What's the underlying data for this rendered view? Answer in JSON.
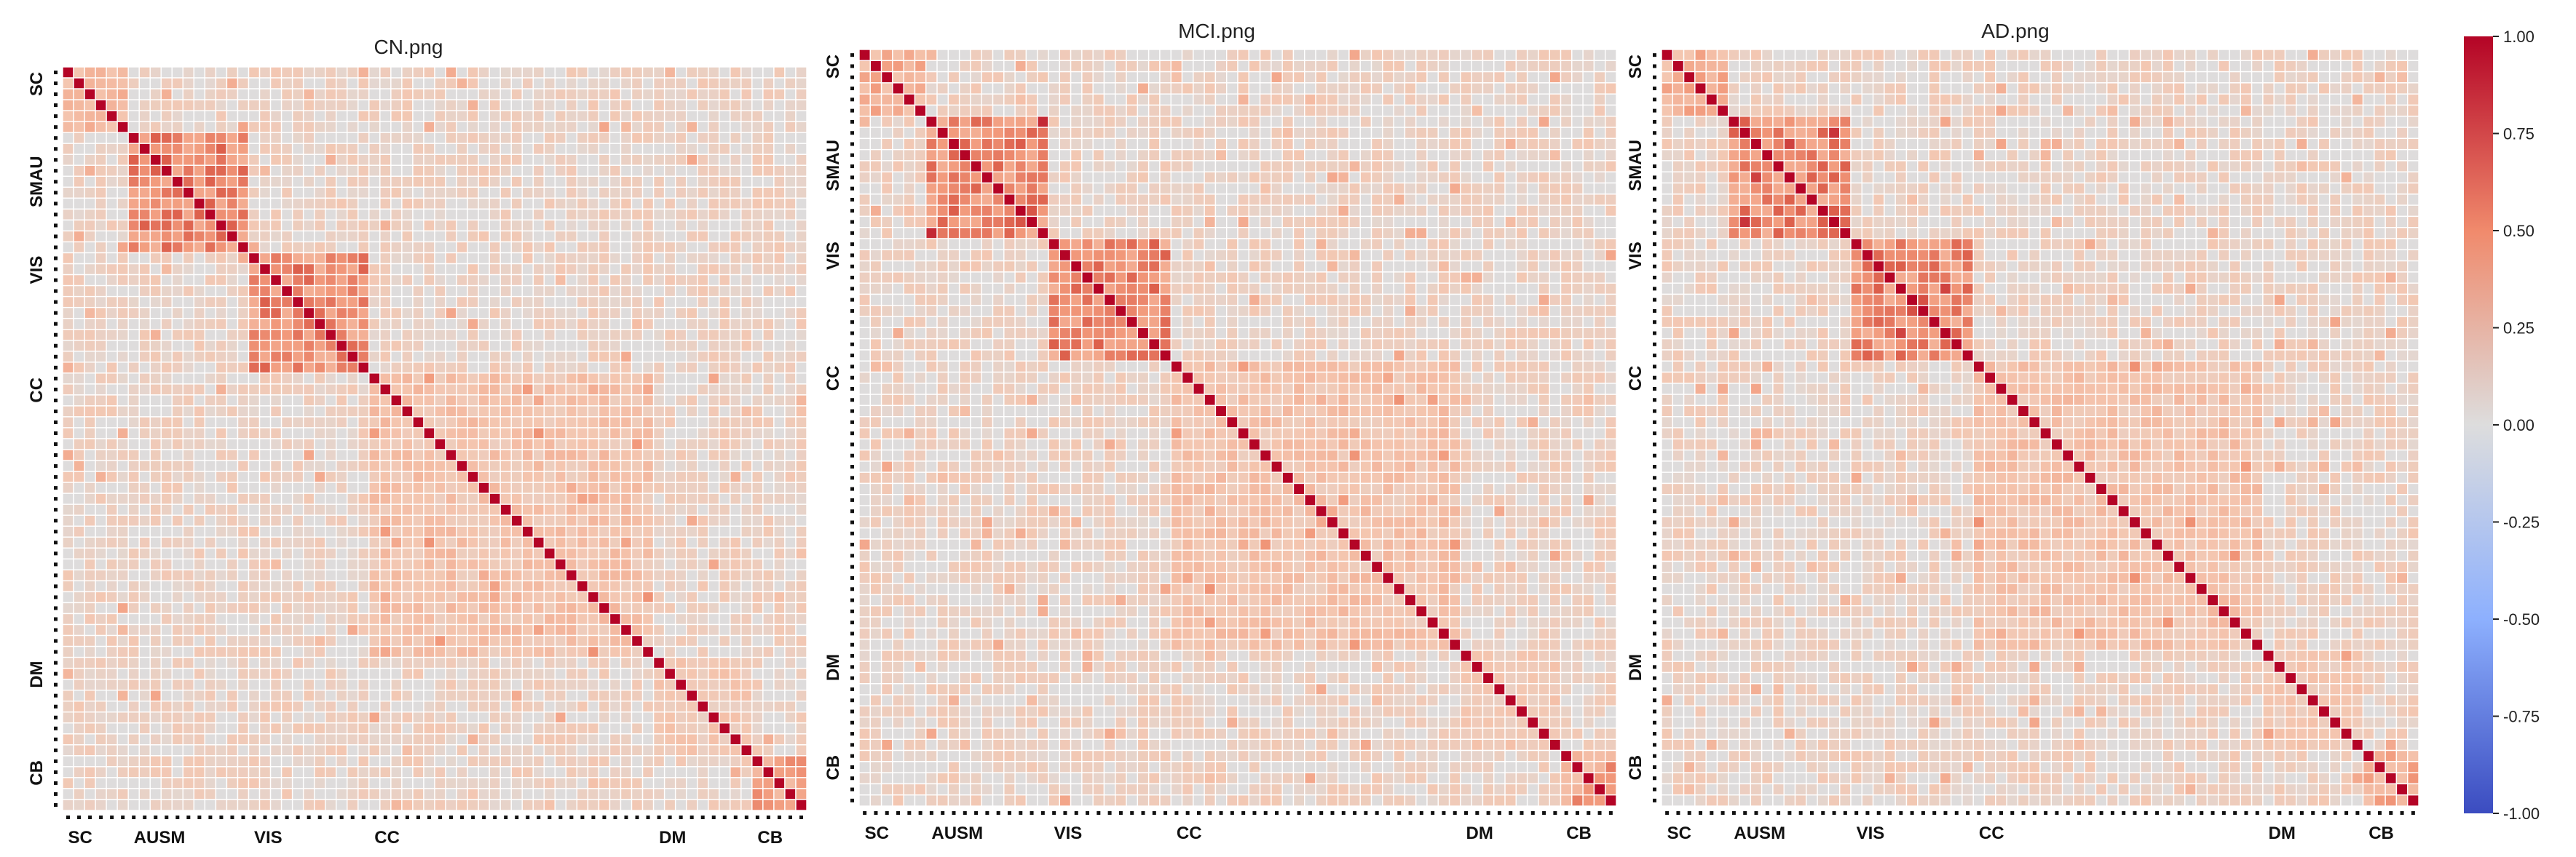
{
  "chart_data": [
    {
      "type": "heatmap",
      "title": "CN.png",
      "x_group_labels": [
        "SC",
        "AUSM",
        "VIS",
        "CC",
        "DM",
        "CB"
      ],
      "y_group_labels": [
        "SC",
        "SMAU",
        "VIS",
        "CC",
        "DM",
        "CB"
      ],
      "matrix_size": 68,
      "diagonal_value": 1.0,
      "blocks": [
        {
          "network": "SC",
          "start": 0,
          "end": 5,
          "within_value": 0.45
        },
        {
          "network": "AUSM",
          "start": 6,
          "end": 16,
          "within_value": 0.65
        },
        {
          "network": "VIS",
          "start": 17,
          "end": 27,
          "within_value": 0.65
        },
        {
          "network": "CC",
          "start": 28,
          "end": 53,
          "within_value": 0.3
        },
        {
          "network": "DM",
          "start": 54,
          "end": 62,
          "within_value": 0.25
        },
        {
          "network": "CB",
          "start": 63,
          "end": 67,
          "within_value": 0.5
        }
      ],
      "background_value": 0.12,
      "vlim": [
        -1.0,
        1.0
      ]
    },
    {
      "type": "heatmap",
      "title": "MCI.png",
      "x_group_labels": [
        "SC",
        "AUSM",
        "VIS",
        "CC",
        "DM",
        "CB"
      ],
      "y_group_labels": [
        "SC",
        "SMAU",
        "VIS",
        "CC",
        "DM",
        "CB"
      ],
      "matrix_size": 68,
      "diagonal_value": 1.0,
      "blocks": [
        {
          "network": "SC",
          "start": 0,
          "end": 5,
          "within_value": 0.45
        },
        {
          "network": "AUSM",
          "start": 6,
          "end": 16,
          "within_value": 0.65
        },
        {
          "network": "VIS",
          "start": 17,
          "end": 27,
          "within_value": 0.65
        },
        {
          "network": "CC",
          "start": 28,
          "end": 53,
          "within_value": 0.3
        },
        {
          "network": "DM",
          "start": 54,
          "end": 62,
          "within_value": 0.25
        },
        {
          "network": "CB",
          "start": 63,
          "end": 67,
          "within_value": 0.5
        }
      ],
      "background_value": 0.12,
      "vlim": [
        -1.0,
        1.0
      ]
    },
    {
      "type": "heatmap",
      "title": "AD.png",
      "x_group_labels": [
        "SC",
        "AUSM",
        "VIS",
        "CC",
        "DM",
        "CB"
      ],
      "y_group_labels": [
        "SC",
        "SMAU",
        "VIS",
        "CC",
        "DM",
        "CB"
      ],
      "matrix_size": 68,
      "diagonal_value": 1.0,
      "blocks": [
        {
          "network": "SC",
          "start": 0,
          "end": 5,
          "within_value": 0.45
        },
        {
          "network": "AUSM",
          "start": 6,
          "end": 16,
          "within_value": 0.65
        },
        {
          "network": "VIS",
          "start": 17,
          "end": 27,
          "within_value": 0.65
        },
        {
          "network": "CC",
          "start": 28,
          "end": 53,
          "within_value": 0.3
        },
        {
          "network": "DM",
          "start": 54,
          "end": 62,
          "within_value": 0.25
        },
        {
          "network": "CB",
          "start": 63,
          "end": 67,
          "within_value": 0.5
        }
      ],
      "background_value": 0.12,
      "vlim": [
        -1.0,
        1.0
      ]
    }
  ],
  "colorbar": {
    "colormap": "coolwarm",
    "range": [
      -1.0,
      1.0
    ],
    "ticks": [
      "1.00",
      "0.75",
      "0.50",
      "0.25",
      "0.00",
      "-0.25",
      "-0.50",
      "-0.75",
      "-1.00"
    ],
    "colors": {
      "low": "#3b4cc0",
      "mid": "#dddddd",
      "high": "#b40426"
    }
  }
}
